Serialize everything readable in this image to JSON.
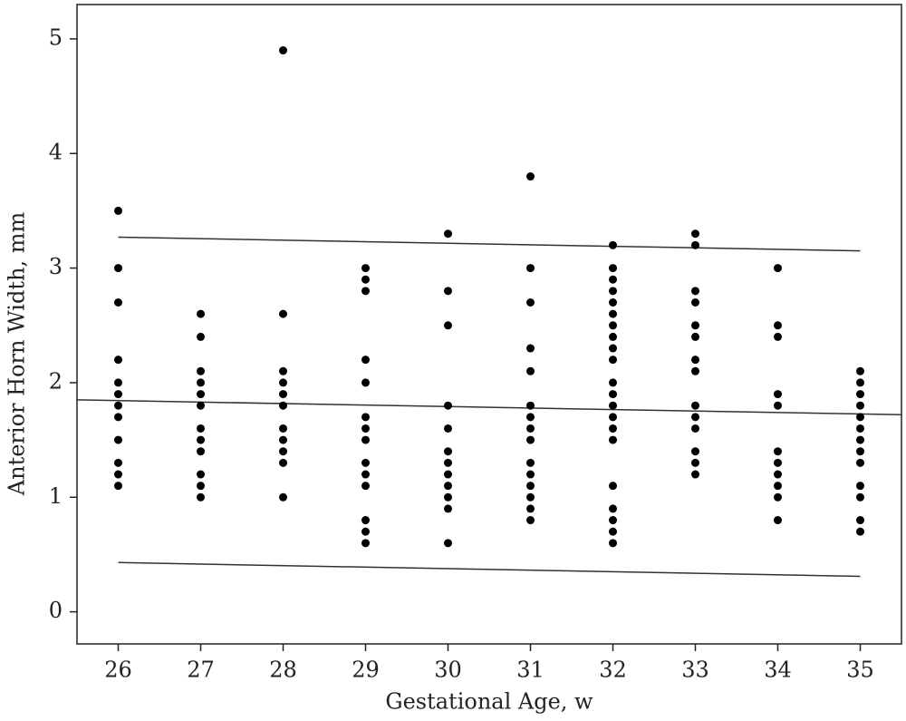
{
  "chart_data": {
    "type": "scatter",
    "xlabel": "Gestational Age, w",
    "ylabel": "Anterior Horn Width, mm",
    "xlim": [
      25.5,
      35.5
    ],
    "ylim": [
      -0.28,
      5.3
    ],
    "xticks": [
      26,
      27,
      28,
      29,
      30,
      31,
      32,
      33,
      34,
      35
    ],
    "yticks": [
      0,
      1,
      2,
      3,
      4,
      5
    ],
    "grid": false,
    "color": "#000000",
    "x": [
      26,
      26,
      26,
      26,
      26,
      26,
      26,
      26,
      26,
      26,
      26,
      26,
      27,
      27,
      27,
      27,
      27,
      27,
      27,
      27,
      27,
      27,
      27,
      27,
      28,
      28,
      28,
      28,
      28,
      28,
      28,
      28,
      28,
      28,
      28,
      29,
      29,
      29,
      29,
      29,
      29,
      29,
      29,
      29,
      29,
      29,
      29,
      29,
      29,
      30,
      30,
      30,
      30,
      30,
      30,
      30,
      30,
      30,
      30,
      30,
      30,
      31,
      31,
      31,
      31,
      31,
      31,
      31,
      31,
      31,
      31,
      31,
      31,
      31,
      31,
      31,
      32,
      32,
      32,
      32,
      32,
      32,
      32,
      32,
      32,
      32,
      32,
      32,
      32,
      32,
      32,
      32,
      32,
      32,
      32,
      32,
      32,
      33,
      33,
      33,
      33,
      33,
      33,
      33,
      33,
      33,
      33,
      33,
      33,
      33,
      33,
      34,
      34,
      34,
      34,
      34,
      34,
      34,
      34,
      34,
      34,
      34,
      35,
      35,
      35,
      35,
      35,
      35,
      35,
      35,
      35,
      35,
      35,
      35,
      35
    ],
    "values": [
      3.5,
      3.0,
      2.7,
      2.2,
      2.0,
      1.9,
      1.8,
      1.7,
      1.5,
      1.3,
      1.2,
      1.1,
      2.6,
      2.4,
      2.1,
      2.0,
      1.9,
      1.8,
      1.6,
      1.5,
      1.4,
      1.2,
      1.1,
      1.0,
      4.9,
      2.6,
      2.1,
      2.0,
      1.9,
      1.8,
      1.6,
      1.5,
      1.4,
      1.3,
      1.0,
      3.0,
      2.9,
      2.8,
      2.2,
      2.0,
      1.7,
      1.6,
      1.5,
      1.3,
      1.2,
      1.1,
      0.8,
      0.7,
      0.6,
      3.3,
      2.8,
      2.5,
      1.8,
      1.6,
      1.4,
      1.3,
      1.2,
      1.1,
      1.0,
      0.9,
      0.6,
      3.8,
      3.0,
      2.7,
      2.3,
      2.1,
      1.8,
      1.7,
      1.6,
      1.5,
      1.3,
      1.2,
      1.1,
      1.0,
      0.9,
      0.8,
      3.2,
      3.0,
      2.9,
      2.8,
      2.7,
      2.6,
      2.5,
      2.4,
      2.3,
      2.2,
      2.0,
      1.9,
      1.8,
      1.7,
      1.6,
      1.5,
      1.1,
      0.9,
      0.8,
      0.7,
      0.6,
      3.3,
      3.2,
      2.8,
      2.7,
      2.5,
      2.4,
      2.2,
      2.1,
      1.8,
      1.7,
      1.6,
      1.4,
      1.3,
      1.2,
      3.0,
      2.5,
      2.4,
      1.9,
      1.8,
      1.4,
      1.3,
      1.2,
      1.1,
      1.0,
      0.8,
      2.1,
      2.0,
      1.9,
      1.8,
      1.7,
      1.6,
      1.5,
      1.4,
      1.3,
      1.1,
      1.0,
      0.8,
      0.7
    ],
    "line_color": "#333333",
    "lines": [
      {
        "x": [
          26,
          35
        ],
        "values": [
          3.27,
          3.15
        ]
      },
      {
        "x": [
          25.5,
          35.5
        ],
        "values": [
          1.85,
          1.72
        ]
      },
      {
        "x": [
          26,
          35
        ],
        "values": [
          0.43,
          0.31
        ]
      }
    ]
  }
}
